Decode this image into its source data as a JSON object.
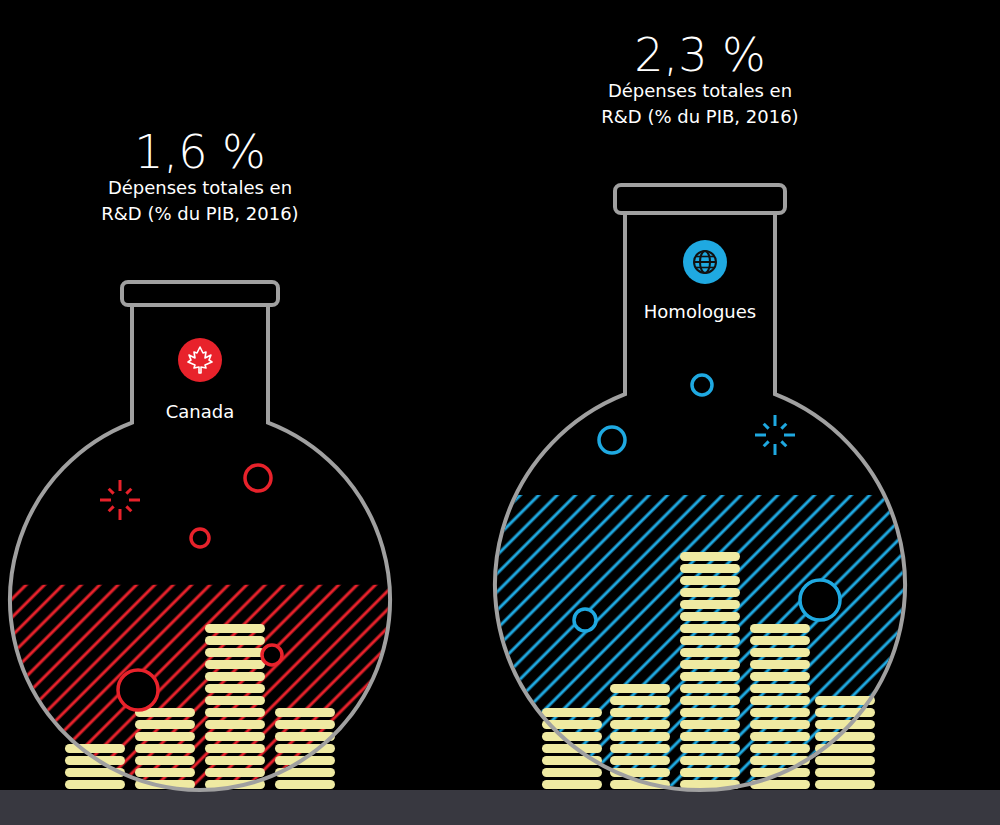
{
  "chart_data": {
    "type": "flask",
    "subtitle": "Dépenses totales en R&D (% du PIB, 2016)",
    "categories": [
      "Canada",
      "Homologues"
    ],
    "values": [
      1.6,
      2.3
    ],
    "value_labels": [
      "1,6 %",
      "2,3 %"
    ],
    "colors": [
      "#e8222b",
      "#1fa9e1"
    ],
    "data_labels": true
  }
}
